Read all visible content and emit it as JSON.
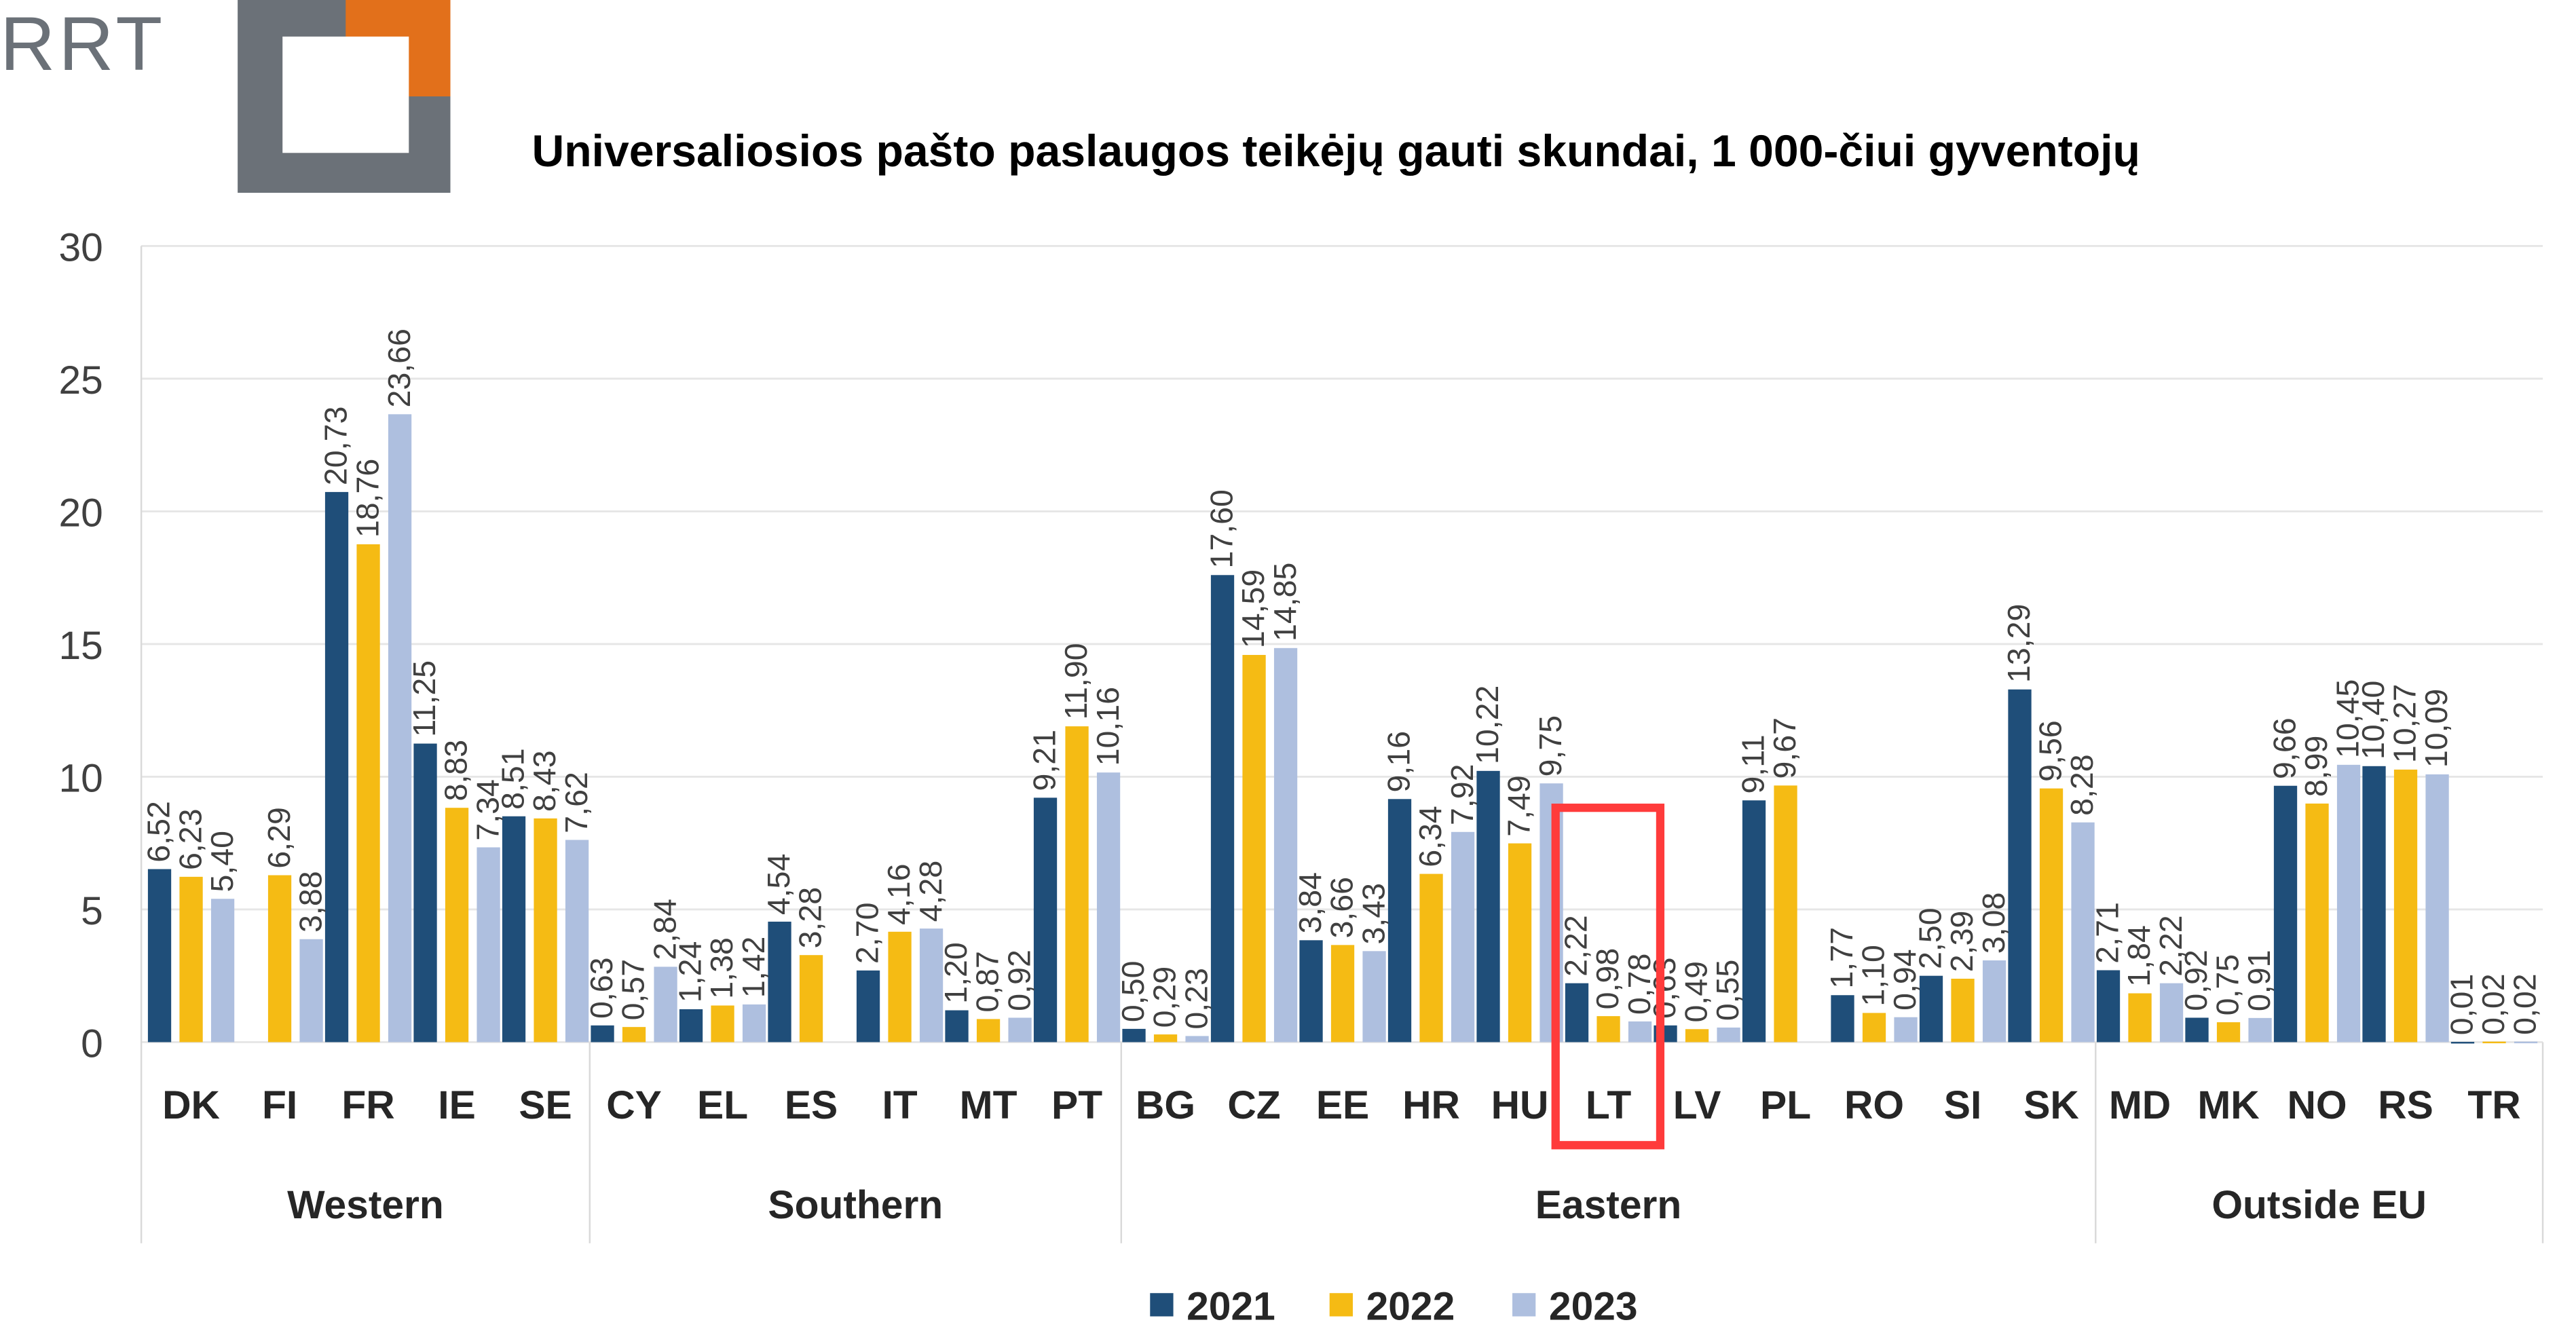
{
  "logo": {
    "text": "RRT",
    "colors": {
      "gray": "#6b7178",
      "orange": "#e2701b"
    }
  },
  "chart_data": {
    "type": "bar",
    "title": "Universaliosios pašto paslaugos teikėjų gauti skundai, 1 000-čiui gyventojų",
    "xlabel": "",
    "ylabel": "",
    "ylim": [
      0,
      30
    ],
    "yticks": [
      "0",
      "5",
      "10",
      "15",
      "20",
      "25",
      "30"
    ],
    "grid": true,
    "legend_position": "bottom",
    "categories": [
      "DK",
      "FI",
      "FR",
      "IE",
      "SE",
      "CY",
      "EL",
      "ES",
      "IT",
      "MT",
      "PT",
      "BG",
      "CZ",
      "EE",
      "HR",
      "HU",
      "LT",
      "LV",
      "PL",
      "RO",
      "SI",
      "SK",
      "MD",
      "MK",
      "NO",
      "RS",
      "TR"
    ],
    "groups": [
      {
        "label": "Western",
        "count": 5
      },
      {
        "label": "Southern",
        "count": 6
      },
      {
        "label": "Eastern",
        "count": 11
      },
      {
        "label": "Outside EU",
        "count": 5
      }
    ],
    "highlight": {
      "category": "LT",
      "color": "#ff3b3b"
    },
    "series": [
      {
        "name": "2021",
        "color": "#1f4e79",
        "values": [
          6.52,
          null,
          20.73,
          11.25,
          8.51,
          0.63,
          1.24,
          4.54,
          2.7,
          1.2,
          9.21,
          0.5,
          17.6,
          3.84,
          9.16,
          10.22,
          2.22,
          0.63,
          9.11,
          1.77,
          2.5,
          13.29,
          2.71,
          0.92,
          9.66,
          10.4,
          0.01
        ],
        "labels": [
          "6,52",
          "",
          "20,73",
          "11,25",
          "8,51",
          "0,63",
          "1,24",
          "4,54",
          "2,70",
          "1,20",
          "9,21",
          "0,50",
          "17,60",
          "3,84",
          "9,16",
          "10,22",
          "2,22",
          "0,63",
          "9,11",
          "1,77",
          "2,50",
          "13,29",
          "2,71",
          "0,92",
          "9,66",
          "10,40",
          "0,01"
        ]
      },
      {
        "name": "2022",
        "color": "#f5bb14",
        "values": [
          6.23,
          6.29,
          18.76,
          8.83,
          8.43,
          0.57,
          1.38,
          3.28,
          4.16,
          0.87,
          11.9,
          0.29,
          14.59,
          3.66,
          6.34,
          7.49,
          0.98,
          0.49,
          9.67,
          1.1,
          2.39,
          9.56,
          1.84,
          0.75,
          8.99,
          10.27,
          0.02
        ],
        "labels": [
          "6,23",
          "6,29",
          "18,76",
          "8,83",
          "8,43",
          "0,57",
          "1,38",
          "3,28",
          "4,16",
          "0,87",
          "11,90",
          "0,29",
          "14,59",
          "3,66",
          "6,34",
          "7,49",
          "0,98",
          "0,49",
          "9,67",
          "1,10",
          "2,39",
          "9,56",
          "1,84",
          "0,75",
          "8,99",
          "10,27",
          "0,02"
        ]
      },
      {
        "name": "2023",
        "color": "#aebfdf",
        "values": [
          5.4,
          3.88,
          23.66,
          7.34,
          7.62,
          2.84,
          1.42,
          null,
          4.28,
          0.92,
          10.16,
          0.23,
          14.85,
          3.43,
          7.92,
          9.75,
          0.78,
          0.55,
          null,
          0.94,
          3.08,
          8.28,
          2.22,
          0.91,
          10.45,
          10.09,
          0.02
        ],
        "labels": [
          "5,40",
          "3,88",
          "23,66",
          "7,34",
          "7,62",
          "2,84",
          "1,42",
          "",
          "4,28",
          "0,92",
          "10,16",
          "0,23",
          "14,85",
          "3,43",
          "7,92",
          "9,75",
          "0,78",
          "0,55",
          "",
          "0,94",
          "3,08",
          "8,28",
          "2,22",
          "0,91",
          "10,45",
          "10,09",
          "0,02"
        ]
      }
    ]
  }
}
